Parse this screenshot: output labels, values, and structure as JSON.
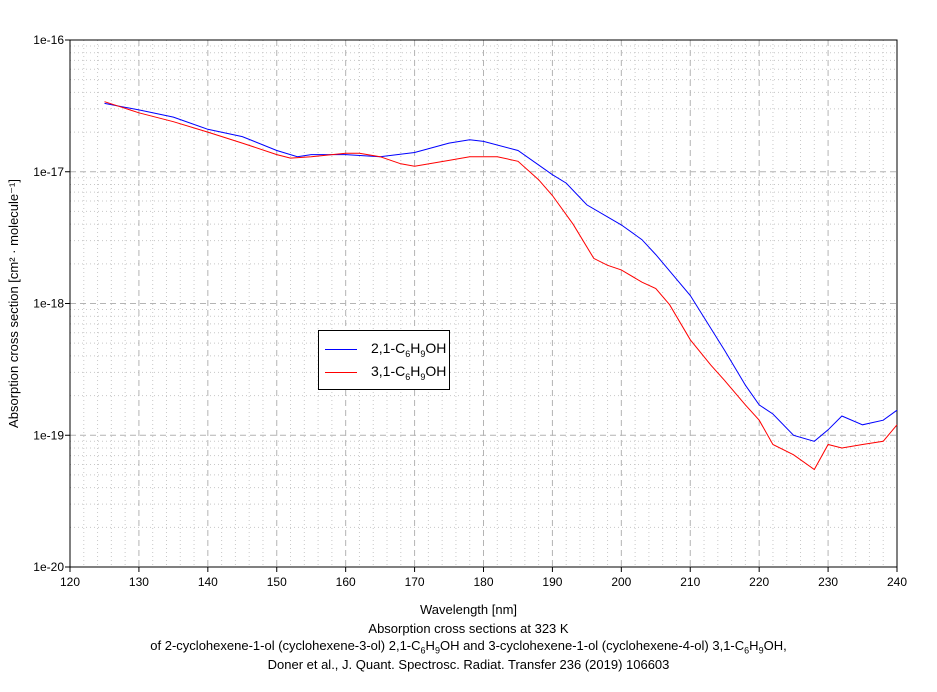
{
  "chart_data": {
    "type": "line",
    "xlabel": "Wavelength [nm]",
    "ylabel": "Absorption cross section [cm² · molecule⁻¹]",
    "xlim": [
      120,
      240
    ],
    "ylim": [
      1e-20,
      1e-16
    ],
    "yscale": "log",
    "grid": true,
    "legend_placement": "center-left",
    "xticks": [
      "120",
      "130",
      "140",
      "150",
      "160",
      "170",
      "180",
      "190",
      "200",
      "210",
      "220",
      "230",
      "240"
    ],
    "yticks": [
      "1e-16",
      "1e-17",
      "1e-18",
      "1e-19",
      "1e-20"
    ],
    "caption": [
      "Absorption cross sections at 323 K",
      "of 2-cyclohexene-1-ol (cyclohexene-3-ol) 2,1-C6H9OH and 3-cyclohexene-1-ol (cyclohexene-4-ol) 3,1-C6H9OH,",
      "Doner et al., J. Quant. Spectrosc. Radiat. Transfer 236 (2019) 106603"
    ],
    "series": [
      {
        "name": "2,1-C6H9OH",
        "color": "#0000ff",
        "x": [
          125,
          130,
          135,
          140,
          145,
          150,
          153,
          155,
          160,
          165,
          170,
          175,
          178,
          180,
          185,
          190,
          192,
          195,
          200,
          203,
          205,
          210,
          215,
          218,
          220,
          222,
          225,
          228,
          230,
          232,
          235,
          238,
          240
        ],
        "y": [
          3.3e-17,
          2.95e-17,
          2.6e-17,
          2.1e-17,
          1.85e-17,
          1.45e-17,
          1.3e-17,
          1.35e-17,
          1.35e-17,
          1.3e-17,
          1.4e-17,
          1.65e-17,
          1.75e-17,
          1.7e-17,
          1.45e-17,
          9.5e-18,
          8.2e-18,
          5.6e-18,
          3.95e-18,
          3.05e-18,
          2.35e-18,
          1.15e-18,
          4.4e-19,
          2.4e-19,
          1.7e-19,
          1.45e-19,
          1e-19,
          9e-20,
          1.1e-19,
          1.4e-19,
          1.2e-19,
          1.3e-19,
          1.55e-19
        ]
      },
      {
        "name": "3,1-C6H9OH",
        "color": "#ff0000",
        "x": [
          125,
          130,
          135,
          140,
          145,
          150,
          152,
          155,
          160,
          162,
          165,
          168,
          170,
          175,
          178,
          182,
          185,
          188,
          190,
          193,
          196,
          198,
          200,
          203,
          205,
          207,
          210,
          213,
          215,
          218,
          220,
          222,
          225,
          228,
          230,
          232,
          235,
          238,
          240
        ],
        "y": [
          3.4e-17,
          2.8e-17,
          2.4e-17,
          2e-17,
          1.65e-17,
          1.35e-17,
          1.27e-17,
          1.3e-17,
          1.38e-17,
          1.38e-17,
          1.3e-17,
          1.15e-17,
          1.1e-17,
          1.22e-17,
          1.3e-17,
          1.3e-17,
          1.2e-17,
          8.7e-18,
          6.6e-18,
          4e-18,
          2.2e-18,
          1.95e-18,
          1.8e-18,
          1.45e-18,
          1.3e-18,
          9.8e-19,
          5.3e-19,
          3.4e-19,
          2.6e-19,
          1.7e-19,
          1.3e-19,
          8.5e-20,
          7.1e-20,
          5.5e-20,
          8.5e-20,
          8e-20,
          8.5e-20,
          9e-20,
          1.2e-19
        ]
      }
    ]
  },
  "legend": {
    "items": [
      {
        "pre": "2,1-C",
        "sub1": "6",
        "mid": "H",
        "sub2": "9",
        "post": "OH"
      },
      {
        "pre": "3,1-C",
        "sub1": "6",
        "mid": "H",
        "sub2": "9",
        "post": "OH"
      }
    ]
  },
  "caption_parts": {
    "l2a": "of 2-cyclohexene-1-ol (cyclohexene-3-ol) 2,1-C",
    "l2b": "6",
    "l2c": "H",
    "l2d": "9",
    "l2e": "OH and 3-cyclohexene-1-ol (cyclohexene-4-ol) 3,1-C",
    "l2f": "6",
    "l2g": "H",
    "l2h": "9",
    "l2i": "OH,"
  }
}
